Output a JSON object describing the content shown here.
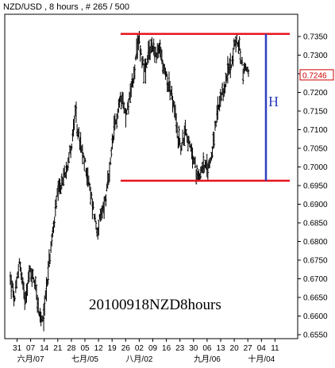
{
  "chart_data": {
    "type": "ohlc",
    "title": "NZD/USD , 8 hours , # 265 / 500",
    "annotation": "20100918NZD8hours",
    "pattern_label": "H",
    "current_price": "0.7246",
    "ylim": [
      0.655,
      0.7375
    ],
    "y_ticks": [
      "0.7350",
      "0.7300",
      "0.7250",
      "0.7200",
      "0.7150",
      "0.7100",
      "0.7050",
      "0.7000",
      "0.6950",
      "0.6900",
      "0.6850",
      "0.6800",
      "0.6750",
      "0.6700",
      "0.6650",
      "0.6600",
      "0.6550"
    ],
    "x_ticks": [
      "31",
      "07",
      "14",
      "21",
      "28",
      "05",
      "12",
      "19",
      "26",
      "02",
      "09",
      "16",
      "23",
      "30",
      "06",
      "13",
      "20",
      "27",
      "04",
      "11"
    ],
    "month_labels": [
      "六月/07",
      "七月/05",
      "八月/02",
      "九月/06",
      "十月/04"
    ],
    "n_bars": 265,
    "price_path": [
      [
        0,
        0.67
      ],
      [
        5,
        0.664
      ],
      [
        10,
        0.675
      ],
      [
        16,
        0.665
      ],
      [
        22,
        0.672
      ],
      [
        28,
        0.669
      ],
      [
        32,
        0.66
      ],
      [
        36,
        0.658
      ],
      [
        40,
        0.668
      ],
      [
        46,
        0.68
      ],
      [
        52,
        0.692
      ],
      [
        58,
        0.696
      ],
      [
        63,
        0.701
      ],
      [
        68,
        0.706
      ],
      [
        72,
        0.714
      ],
      [
        76,
        0.708
      ],
      [
        80,
        0.703
      ],
      [
        84,
        0.7
      ],
      [
        88,
        0.694
      ],
      [
        92,
        0.689
      ],
      [
        96,
        0.683
      ],
      [
        100,
        0.686
      ],
      [
        106,
        0.692
      ],
      [
        110,
        0.698
      ],
      [
        114,
        0.708
      ],
      [
        120,
        0.716
      ],
      [
        124,
        0.72
      ],
      [
        128,
        0.713
      ],
      [
        132,
        0.719
      ],
      [
        136,
        0.723
      ],
      [
        140,
        0.73
      ],
      [
        143,
        0.734
      ],
      [
        146,
        0.729
      ],
      [
        150,
        0.725
      ],
      [
        154,
        0.731
      ],
      [
        158,
        0.733
      ],
      [
        162,
        0.729
      ],
      [
        166,
        0.732
      ],
      [
        170,
        0.726
      ],
      [
        174,
        0.724
      ],
      [
        178,
        0.72
      ],
      [
        182,
        0.715
      ],
      [
        186,
        0.708
      ],
      [
        190,
        0.705
      ],
      [
        194,
        0.711
      ],
      [
        198,
        0.706
      ],
      [
        202,
        0.703
      ],
      [
        206,
        0.699
      ],
      [
        210,
        0.698
      ],
      [
        214,
        0.701
      ],
      [
        218,
        0.699
      ],
      [
        222,
        0.702
      ],
      [
        226,
        0.708
      ],
      [
        230,
        0.715
      ],
      [
        234,
        0.718
      ],
      [
        238,
        0.722
      ],
      [
        242,
        0.726
      ],
      [
        246,
        0.729
      ],
      [
        250,
        0.734
      ],
      [
        254,
        0.732
      ],
      [
        258,
        0.726
      ],
      [
        262,
        0.727
      ],
      [
        264,
        0.7246
      ]
    ],
    "resistance": 0.7357,
    "support": 0.6963,
    "colors": {
      "bars": "#000000",
      "levels": "#e8131c",
      "height_line": "#2f3fc0",
      "price_box": "#d00000"
    }
  }
}
